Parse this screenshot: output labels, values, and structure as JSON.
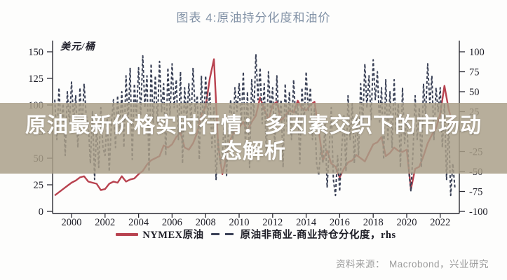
{
  "figure": {
    "title": "图表 4:原油持分化度和油价",
    "source_label": "资料来源：",
    "source_value": "Macrobond，兴业研究"
  },
  "banner": {
    "headline": "原油最新价格实时行情：多因素交织下的市场动态解析"
  },
  "chart_data": {
    "type": "line",
    "title": "图表 4:原油持分化度和油价",
    "unit_label": "美元/桶",
    "grid": false,
    "legend_position": "bottom",
    "x_axis": {
      "ticks": [
        2000,
        2002,
        2004,
        2006,
        2008,
        2010,
        2012,
        2014,
        2016,
        2018,
        2020,
        2022
      ],
      "range": [
        1998.9,
        2023.2
      ]
    },
    "left_axis": {
      "label": "美元/桶",
      "ticks": [
        150,
        125,
        100,
        75,
        50,
        25,
        0
      ],
      "range": [
        0,
        150
      ]
    },
    "right_axis": {
      "label": "rhs",
      "ticks": [
        100,
        75,
        50,
        25,
        0,
        -25,
        -50,
        -75,
        -100
      ],
      "range": [
        -100,
        100
      ]
    },
    "legend": [
      {
        "label": "NYMEX原油",
        "color": "#b8424f",
        "style": "solid",
        "axis": "left"
      },
      {
        "label": "原油非商业-商业持仓分化度，rhs",
        "color": "#3a4156",
        "style": "dashed",
        "axis": "right"
      }
    ],
    "series": [
      {
        "name": "NYMEX原油",
        "axis": "left",
        "style": "solid",
        "color": "#b8424f",
        "start": 1999.0,
        "step": 0.25,
        "values": [
          15,
          18,
          21,
          24,
          27,
          29,
          32,
          33,
          28,
          27,
          26,
          20,
          21,
          26,
          28,
          27,
          33,
          28,
          30,
          31,
          35,
          38,
          44,
          48,
          50,
          52,
          62,
          60,
          63,
          70,
          74,
          60,
          58,
          64,
          74,
          91,
          98,
          125,
          143,
          62,
          35,
          52,
          68,
          76,
          79,
          84,
          76,
          84,
          90,
          107,
          96,
          86,
          100,
          103,
          85,
          90,
          95,
          93,
          104,
          97,
          95,
          100,
          103,
          76,
          48,
          57,
          45,
          42,
          32,
          40,
          46,
          48,
          53,
          50,
          47,
          55,
          63,
          65,
          70,
          52,
          55,
          60,
          57,
          56,
          58,
          21,
          40,
          42,
          52,
          64,
          72,
          78,
          92,
          118,
          96,
          82
        ]
      },
      {
        "name": "原油非商业-商业持仓分化度",
        "axis": "right",
        "style": "dashed",
        "color": "#3a4156",
        "start": 1999.0,
        "step": 0.125,
        "values": [
          40,
          -10,
          55,
          5,
          35,
          -30,
          50,
          10,
          62,
          15,
          45,
          -20,
          55,
          0,
          60,
          20,
          10,
          -40,
          25,
          -60,
          5,
          -45,
          30,
          -20,
          -30,
          20,
          -50,
          10,
          40,
          -20,
          45,
          0,
          50,
          -20,
          70,
          10,
          80,
          -35,
          60,
          20,
          80,
          20,
          95,
          30,
          70,
          -50,
          85,
          10,
          70,
          10,
          88,
          25,
          60,
          -30,
          80,
          20,
          85,
          30,
          65,
          -10,
          75,
          -40,
          55,
          15,
          60,
          10,
          80,
          25,
          45,
          -35,
          70,
          0,
          70,
          20,
          50,
          -20,
          30,
          -60,
          -10,
          -40,
          -30,
          20,
          -55,
          10,
          40,
          -10,
          55,
          25,
          60,
          10,
          75,
          -20,
          50,
          -45,
          65,
          20,
          97,
          40,
          80,
          10,
          60,
          -30,
          75,
          25,
          55,
          -20,
          70,
          10,
          40,
          -45,
          60,
          0,
          50,
          -10,
          65,
          15,
          35,
          -40,
          55,
          10,
          75,
          25,
          55,
          -10,
          30,
          -40,
          -55,
          -20,
          -40,
          10,
          -70,
          -20,
          30,
          -60,
          -80,
          -30,
          -75,
          -20,
          20,
          -50,
          45,
          -10,
          35,
          -40,
          20,
          -30,
          60,
          10,
          85,
          30,
          70,
          15,
          90,
          40,
          75,
          10,
          55,
          -35,
          65,
          -10,
          50,
          -20,
          65,
          0,
          35,
          -45,
          55,
          -15,
          20,
          -50,
          -75,
          -25,
          45,
          -10,
          30,
          -45,
          60,
          20,
          85,
          35,
          70,
          -10,
          55,
          25,
          55,
          -20,
          35,
          -60,
          10,
          -80,
          -40,
          -70
        ]
      }
    ]
  }
}
